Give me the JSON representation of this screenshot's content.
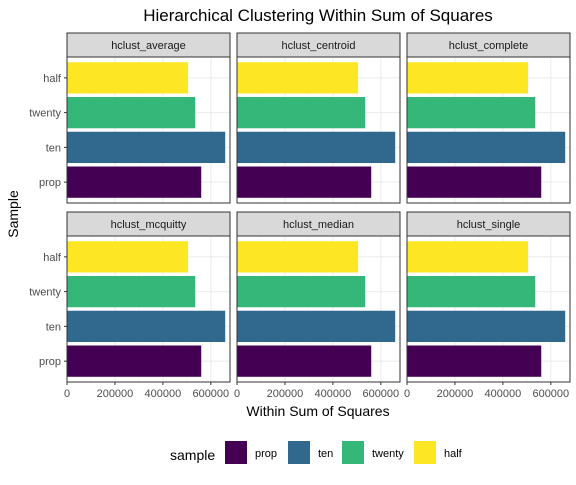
{
  "chart_data": {
    "type": "bar",
    "orientation": "horizontal",
    "title": "Hierarchical Clustering Within Sum of Squares",
    "xlabel": "Within Sum of Squares",
    "ylabel": "Sample",
    "categories": [
      "prop",
      "ten",
      "twenty",
      "half"
    ],
    "x_ticks": [
      0,
      200000,
      400000,
      600000
    ],
    "x_tick_labels": [
      "0",
      "200000",
      "400000",
      "600000"
    ],
    "xlim": [
      0,
      680000
    ],
    "grid": true,
    "legend": {
      "title": "sample",
      "position": "bottom",
      "entries": [
        {
          "label": "prop",
          "color": "#440154"
        },
        {
          "label": "ten",
          "color": "#31688E"
        },
        {
          "label": "twenty",
          "color": "#35B779"
        },
        {
          "label": "half",
          "color": "#FDE725"
        }
      ]
    },
    "facets": [
      {
        "name": "hclust_average",
        "values": {
          "prop": 560000,
          "ten": 660000,
          "twenty": 535000,
          "half": 505000
        }
      },
      {
        "name": "hclust_centroid",
        "values": {
          "prop": 560000,
          "ten": 660000,
          "twenty": 535000,
          "half": 505000
        }
      },
      {
        "name": "hclust_complete",
        "values": {
          "prop": 560000,
          "ten": 660000,
          "twenty": 535000,
          "half": 505000
        }
      },
      {
        "name": "hclust_mcquitty",
        "values": {
          "prop": 560000,
          "ten": 660000,
          "twenty": 535000,
          "half": 505000
        }
      },
      {
        "name": "hclust_median",
        "values": {
          "prop": 560000,
          "ten": 660000,
          "twenty": 535000,
          "half": 505000
        }
      },
      {
        "name": "hclust_single",
        "values": {
          "prop": 560000,
          "ten": 660000,
          "twenty": 535000,
          "half": 505000
        }
      }
    ]
  }
}
